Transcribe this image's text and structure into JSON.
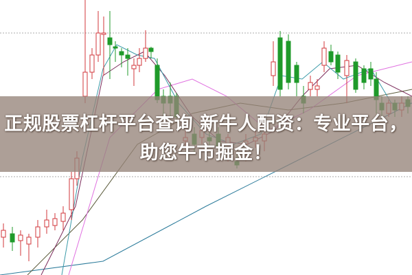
{
  "headline": "正规股票杠杆平台查询 新牛人配资：专业平台，助您牛市掘金！",
  "colors": {
    "up": "#d0343a",
    "down": "#1f9a2a",
    "banner": "#96847a",
    "ma5": "#3a9aa8",
    "ma10": "#7a2a5a",
    "ma20": "#e070e0",
    "ma60": "#5a5a3a",
    "ma120": "#2a7a9a"
  }
}
